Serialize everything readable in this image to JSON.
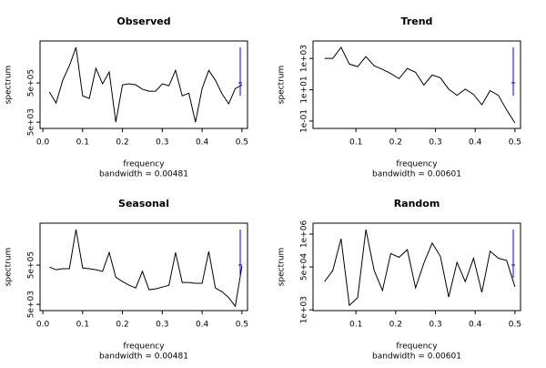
{
  "chart_data": [
    {
      "type": "line",
      "title": "Observed",
      "xlabel": "frequency",
      "subtitle": "bandwidth = 0.00481",
      "ylabel": "spectrum",
      "log_y": true,
      "color": "#000000",
      "x": [
        0.0167,
        0.0333,
        0.05,
        0.0667,
        0.0833,
        0.1,
        0.1167,
        0.1333,
        0.15,
        0.1667,
        0.1833,
        0.2,
        0.2167,
        0.2333,
        0.25,
        0.2667,
        0.2833,
        0.3,
        0.3167,
        0.3333,
        0.35,
        0.3667,
        0.3833,
        0.4,
        0.4167,
        0.4333,
        0.45,
        0.4667,
        0.4833,
        0.5
      ],
      "values": [
        170000,
        47000,
        690000,
        3800000,
        33000000,
        110000,
        81000,
        2800000,
        450000,
        1800000,
        5000,
        400000,
        450000,
        400000,
        240000,
        190000,
        190000,
        450000,
        360000,
        2200000,
        110000,
        150000,
        5000,
        260000,
        2200000,
        690000,
        140000,
        43000,
        260000,
        400000
      ],
      "xlim": [
        -0.007,
        0.514
      ],
      "ylim": [
        2400,
        69000000
      ],
      "xticks": [
        {
          "value": 0,
          "label": "0.0"
        },
        0.1,
        0.2,
        0.3,
        0.4,
        0.5
      ],
      "yticks": [
        {
          "value": 5000,
          "label": "5e+03"
        },
        {
          "value": 500000,
          "label": "5e+05"
        }
      ]
    },
    {
      "type": "line",
      "title": "Trend",
      "xlabel": "frequency",
      "subtitle": "bandwidth = 0.00601",
      "ylabel": "spectrum",
      "log_y": true,
      "color": "#000000",
      "x": [
        0.0208,
        0.0417,
        0.0625,
        0.0833,
        0.1042,
        0.125,
        0.1458,
        0.1667,
        0.1875,
        0.2083,
        0.2292,
        0.25,
        0.2708,
        0.2917,
        0.3125,
        0.3333,
        0.3542,
        0.375,
        0.3958,
        0.4167,
        0.4375,
        0.4583,
        0.4792,
        0.5
      ],
      "values": [
        1000,
        1000,
        5100,
        440,
        300,
        1300,
        340,
        200,
        110,
        51,
        230,
        130,
        20,
        87,
        58,
        11,
        4.4,
        11,
        5.1,
        1.1,
        8.7,
        4.4,
        0.51,
        0.076
      ],
      "xlim": [
        -0.008,
        0.514
      ],
      "ylim": [
        0.034,
        13000
      ],
      "xticks": [
        0.1,
        0.2,
        0.3,
        0.4,
        0.5
      ],
      "yticks": [
        {
          "value": 0.1,
          "label": "1e-01"
        },
        {
          "value": 10,
          "label": "1e+01"
        },
        {
          "value": 1000,
          "label": "1e+03"
        }
      ]
    },
    {
      "type": "line",
      "title": "Seasonal",
      "xlabel": "frequency",
      "subtitle": "bandwidth = 0.00481",
      "ylabel": "spectrum",
      "log_y": true,
      "color": "#000000",
      "x": [
        0.0167,
        0.0333,
        0.05,
        0.0667,
        0.0833,
        0.1,
        0.1167,
        0.1333,
        0.15,
        0.1667,
        0.1833,
        0.2,
        0.2167,
        0.2333,
        0.25,
        0.2667,
        0.2833,
        0.3,
        0.3167,
        0.3333,
        0.35,
        0.3667,
        0.3833,
        0.4,
        0.4167,
        0.4333,
        0.45,
        0.4667,
        0.4833,
        0.5
      ],
      "values": [
        400000,
        290000,
        330000,
        330000,
        33000000,
        360000,
        330000,
        290000,
        240000,
        2200000,
        120000,
        73000,
        47000,
        34000,
        240000,
        28000,
        31000,
        38000,
        47000,
        2200000,
        65000,
        65000,
        59000,
        59000,
        2500000,
        34000,
        22000,
        11000,
        4000,
        450000
      ],
      "xlim": [
        -0.007,
        0.514
      ],
      "ylim": [
        2400,
        69000000
      ],
      "xticks": [
        {
          "value": 0,
          "label": "0.0"
        },
        0.1,
        0.2,
        0.3,
        0.4,
        0.5
      ],
      "yticks": [
        {
          "value": 5000,
          "label": "5e+03"
        },
        {
          "value": 500000,
          "label": "5e+05"
        }
      ]
    },
    {
      "type": "line",
      "title": "Random",
      "xlabel": "frequency",
      "subtitle": "bandwidth = 0.00601",
      "ylabel": "spectrum",
      "log_y": true,
      "color": "#000000",
      "x": [
        0.0208,
        0.0417,
        0.0625,
        0.0833,
        0.1042,
        0.125,
        0.1458,
        0.1667,
        0.1875,
        0.2083,
        0.2292,
        0.25,
        0.2708,
        0.2917,
        0.3125,
        0.3333,
        0.3542,
        0.375,
        0.3958,
        0.4167,
        0.4375,
        0.4583,
        0.4792,
        0.5
      ],
      "values": [
        13000,
        36000,
        660000,
        1500,
        3000,
        1500000,
        36000,
        5800,
        170000,
        120000,
        240000,
        7400,
        70000,
        440000,
        130000,
        3200,
        76000,
        13000,
        110000,
        4900,
        210000,
        110000,
        90000,
        8100
      ],
      "xlim": [
        -0.008,
        0.514
      ],
      "ylim": [
        930,
        2700000
      ],
      "xticks": [
        0.1,
        0.2,
        0.3,
        0.4,
        0.5
      ],
      "yticks": [
        {
          "value": 1000,
          "label": "1e+03"
        },
        {
          "value": 50000,
          "label": "5e+04"
        },
        {
          "value": 1000000,
          "label": "1e+06"
        }
      ]
    }
  ]
}
